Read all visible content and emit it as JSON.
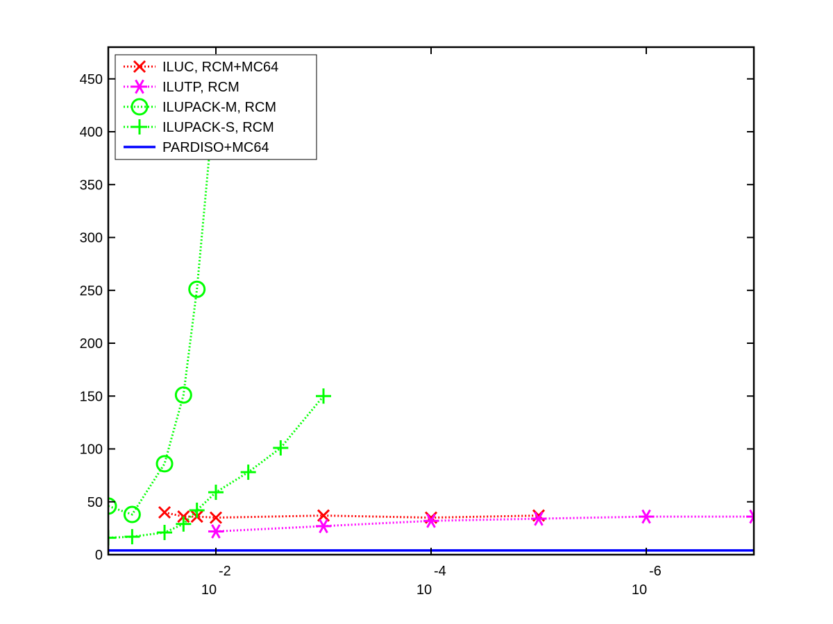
{
  "chart_data": {
    "type": "line",
    "title": "",
    "xlabel": "",
    "ylabel": "",
    "x_scale": "log10-reversed",
    "xlim": [
      0.1,
      1e-07
    ],
    "ylim": [
      0,
      480
    ],
    "xticks": [
      {
        "value": 0.01,
        "base": "10",
        "exponent": "-2"
      },
      {
        "value": 0.0001,
        "base": "10",
        "exponent": "-4"
      },
      {
        "value": 1e-06,
        "base": "10",
        "exponent": "-6"
      }
    ],
    "yticks": [
      0,
      50,
      100,
      150,
      200,
      250,
      300,
      350,
      400,
      450
    ],
    "grid": false,
    "legend_position": "top-left",
    "series": [
      {
        "name": "ILUC, RCM+MC64",
        "color": "#ff0000",
        "marker": "x",
        "linestyle": "dotted",
        "x": [
          0.03,
          0.02,
          0.015,
          0.01,
          0.001,
          0.0001,
          1e-05
        ],
        "y": [
          40,
          36,
          36,
          35,
          37,
          35,
          37
        ]
      },
      {
        "name": "ILUTP, RCM",
        "color": "#ff00ff",
        "marker": "asterisk",
        "linestyle": "dotted",
        "x": [
          0.01,
          0.001,
          0.0001,
          1e-05,
          1e-06,
          1e-07
        ],
        "y": [
          22,
          27,
          32,
          34,
          36,
          36
        ]
      },
      {
        "name": "ILUPACK-M, RCM",
        "color": "#00ff00",
        "marker": "circle",
        "linestyle": "dotted",
        "x": [
          0.1,
          0.06,
          0.03,
          0.02,
          0.015,
          0.011
        ],
        "y": [
          46,
          38,
          86,
          151,
          251,
          400
        ]
      },
      {
        "name": "ILUPACK-S, RCM",
        "color": "#00ff00",
        "marker": "plus",
        "linestyle": "dotted",
        "x": [
          0.1,
          0.06,
          0.03,
          0.02,
          0.015,
          0.01,
          0.005,
          0.0025,
          0.001
        ],
        "y": [
          16,
          17,
          21,
          29,
          42,
          59,
          78,
          101,
          150
        ]
      },
      {
        "name": "PARDISO+MC64",
        "color": "#0000ff",
        "marker": "none",
        "linestyle": "solid",
        "x": [
          0.1,
          1e-07
        ],
        "y": [
          4,
          4
        ]
      }
    ]
  }
}
